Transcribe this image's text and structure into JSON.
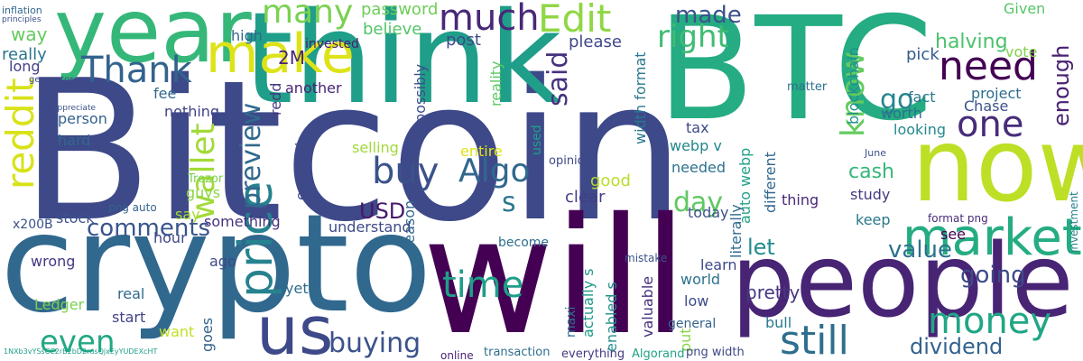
{
  "words": [
    {
      "text": "Bitcoin",
      "color": "#3e4989"
    },
    {
      "text": "will",
      "color": "#440154"
    },
    {
      "text": "think",
      "color": "#1f9e89"
    },
    {
      "text": "BTC",
      "color": "#25ac82"
    },
    {
      "text": "crypto",
      "color": "#31688e"
    },
    {
      "text": "year",
      "color": "#35b779"
    },
    {
      "text": "people",
      "color": "#482475"
    },
    {
      "text": "now",
      "color": "#bddf26"
    },
    {
      "text": "us",
      "color": "#3e4989"
    },
    {
      "text": "market",
      "color": "#25ac82"
    },
    {
      "text": "price",
      "color": "#26828e"
    },
    {
      "text": "make",
      "color": "#dde318"
    },
    {
      "text": "Edit",
      "color": "#8fd744"
    },
    {
      "text": "much",
      "color": "#482878"
    },
    {
      "text": "Thank",
      "color": "#33638d"
    },
    {
      "text": "need",
      "color": "#440154"
    },
    {
      "text": "many",
      "color": "#7ad151"
    },
    {
      "text": "reddit",
      "color": "#d8e219"
    },
    {
      "text": "buy",
      "color": "#3b528b"
    },
    {
      "text": "Algo",
      "color": "#31688e"
    },
    {
      "text": "time",
      "color": "#1f9e89"
    },
    {
      "text": "money",
      "color": "#21a685"
    },
    {
      "text": "still",
      "color": "#2e6e8e"
    },
    {
      "text": "one",
      "color": "#472c7a"
    },
    {
      "text": "know",
      "color": "#63cb5f"
    },
    {
      "text": "wallet",
      "color": "#a2da37"
    },
    {
      "text": "right",
      "color": "#3fbc73"
    },
    {
      "text": "buying",
      "color": "#3b528b"
    },
    {
      "text": "even",
      "color": "#22a884"
    },
    {
      "text": "comments",
      "color": "#39558c"
    },
    {
      "text": "value",
      "color": "#2c728e"
    },
    {
      "text": "going",
      "color": "#3e4a89"
    },
    {
      "text": "said",
      "color": "#46317e"
    },
    {
      "text": "go",
      "color": "#25858e"
    },
    {
      "text": "made",
      "color": "#3b528b"
    },
    {
      "text": "enough",
      "color": "#482173"
    },
    {
      "text": "dividend",
      "color": "#33638d"
    },
    {
      "text": "s",
      "color": "#2a788e"
    },
    {
      "text": "USD",
      "color": "#48186a"
    },
    {
      "text": "day",
      "color": "#5ec962"
    },
    {
      "text": "preview",
      "color": "#31688e"
    },
    {
      "text": "halving",
      "color": "#4ac16d"
    },
    {
      "text": "let",
      "color": "#228c8d"
    },
    {
      "text": "pretty",
      "color": "#453882"
    },
    {
      "text": "cash",
      "color": "#35b779"
    },
    {
      "text": "really",
      "color": "#2b748e"
    },
    {
      "text": "post",
      "color": "#3e4989"
    },
    {
      "text": "password",
      "color": "#6ece58"
    },
    {
      "text": "2M",
      "color": "#482475"
    },
    {
      "text": "way",
      "color": "#65cb5e"
    },
    {
      "text": "believe",
      "color": "#54c568"
    },
    {
      "text": "invested",
      "color": "#481f70"
    },
    {
      "text": "please",
      "color": "#3f4889"
    },
    {
      "text": "pick",
      "color": "#365c8d"
    },
    {
      "text": "vote",
      "color": "#81d34d"
    },
    {
      "text": "Given",
      "color": "#56c667"
    },
    {
      "text": "long",
      "color": "#424086"
    },
    {
      "text": "high",
      "color": "#31688e"
    },
    {
      "text": "width format",
      "color": "#2a788e"
    },
    {
      "text": "enabled",
      "color": "#3e4a89"
    },
    {
      "text": "project",
      "color": "#2e6e8e"
    },
    {
      "text": "fee",
      "color": "#31688e"
    },
    {
      "text": "possibly",
      "color": "#3c4f8a"
    },
    {
      "text": "reality",
      "color": "#5cc863"
    },
    {
      "text": "matter",
      "color": "#2d708e"
    },
    {
      "text": "another",
      "color": "#482475"
    },
    {
      "text": "blockchain",
      "color": "#218f8d"
    },
    {
      "text": "fact",
      "color": "#2a788e"
    },
    {
      "text": "person",
      "color": "#34618d"
    },
    {
      "text": "nothing",
      "color": "#404387"
    },
    {
      "text": "worth",
      "color": "#2c728e"
    },
    {
      "text": "Chase",
      "color": "#3b528b"
    },
    {
      "text": "looking",
      "color": "#23898e"
    },
    {
      "text": "hard",
      "color": "#31688e"
    },
    {
      "text": "redd",
      "color": "#453781"
    },
    {
      "text": "tax",
      "color": "#3e4989"
    },
    {
      "text": "webp v",
      "color": "#24868e"
    },
    {
      "text": "entire",
      "color": "#dde318"
    },
    {
      "text": "selling",
      "color": "#a0da39"
    },
    {
      "text": "auto webp",
      "color": "#20a386"
    },
    {
      "text": "different",
      "color": "#31688e"
    },
    {
      "text": "opinion",
      "color": "#3e4989"
    },
    {
      "text": "needed",
      "color": "#2c728e"
    },
    {
      "text": "good",
      "color": "#b8de29"
    },
    {
      "text": "study",
      "color": "#453882"
    },
    {
      "text": "thing",
      "color": "#482878"
    },
    {
      "text": "literally",
      "color": "#2f6c8e"
    },
    {
      "text": "today",
      "color": "#3b528b"
    },
    {
      "text": "keep",
      "color": "#2a788e"
    },
    {
      "text": "see",
      "color": "#440154"
    },
    {
      "text": "Trezor",
      "color": "#7ad151"
    },
    {
      "text": "guys",
      "color": "#8bd646"
    },
    {
      "text": "stock",
      "color": "#3b528b"
    },
    {
      "text": "clear",
      "color": "#433e85"
    },
    {
      "text": "say",
      "color": "#a5db36"
    },
    {
      "text": "reason",
      "color": "#31688e"
    },
    {
      "text": "become",
      "color": "#2e6e8e"
    },
    {
      "text": "something",
      "color": "#46327e"
    },
    {
      "text": "understand",
      "color": "#3e4a89"
    },
    {
      "text": "hour",
      "color": "#3f4889"
    },
    {
      "text": "x200B",
      "color": "#3b528b"
    },
    {
      "text": "ago",
      "color": "#3f4889"
    },
    {
      "text": "wrong",
      "color": "#453882"
    },
    {
      "text": "Ledger",
      "color": "#7ad151"
    },
    {
      "text": "real",
      "color": "#30698e"
    },
    {
      "text": "start",
      "color": "#424186"
    },
    {
      "text": "want",
      "color": "#c0df25"
    },
    {
      "text": "yet",
      "color": "#2f6c8e"
    },
    {
      "text": "learn",
      "color": "#3e4989"
    },
    {
      "text": "world",
      "color": "#2d718e"
    },
    {
      "text": "low",
      "color": "#3d4d8a"
    },
    {
      "text": "general",
      "color": "#33638d"
    },
    {
      "text": "bull",
      "color": "#2a788e"
    },
    {
      "text": "valuable",
      "color": "#46307e"
    },
    {
      "text": "enabled s",
      "color": "#21908d"
    },
    {
      "text": "actually s",
      "color": "#1f9a8a"
    },
    {
      "text": "maxi",
      "color": "#2d718e"
    },
    {
      "text": "put",
      "color": "#8bd646"
    },
    {
      "text": "goes",
      "color": "#33638d"
    },
    {
      "text": "mistake",
      "color": "#3b528b"
    },
    {
      "text": "png width",
      "color": "#3e4989"
    },
    {
      "text": "transaction",
      "color": "#2e6e8e"
    },
    {
      "text": "everything",
      "color": "#453882"
    },
    {
      "text": "Algorand",
      "color": "#20a386"
    },
    {
      "text": "online",
      "color": "#481f70"
    },
    {
      "text": "used",
      "color": "#1fa088"
    },
    {
      "text": "inflation",
      "color": "#31688e"
    },
    {
      "text": "principles",
      "color": "#3b528b"
    },
    {
      "text": "generator",
      "color": "#3e4989"
    },
    {
      "text": "appreciate",
      "color": "#3b528b"
    },
    {
      "text": "png auto",
      "color": "#33638d"
    },
    {
      "text": "investment",
      "color": "#26828e"
    },
    {
      "text": "format png",
      "color": "#472c7a"
    },
    {
      "text": "June",
      "color": "#3b528b"
    },
    {
      "text": "1NXb3vYSsCC2rB2bD2rusQjxEyYUDEXcHT",
      "color": "#1f9e89"
    }
  ]
}
